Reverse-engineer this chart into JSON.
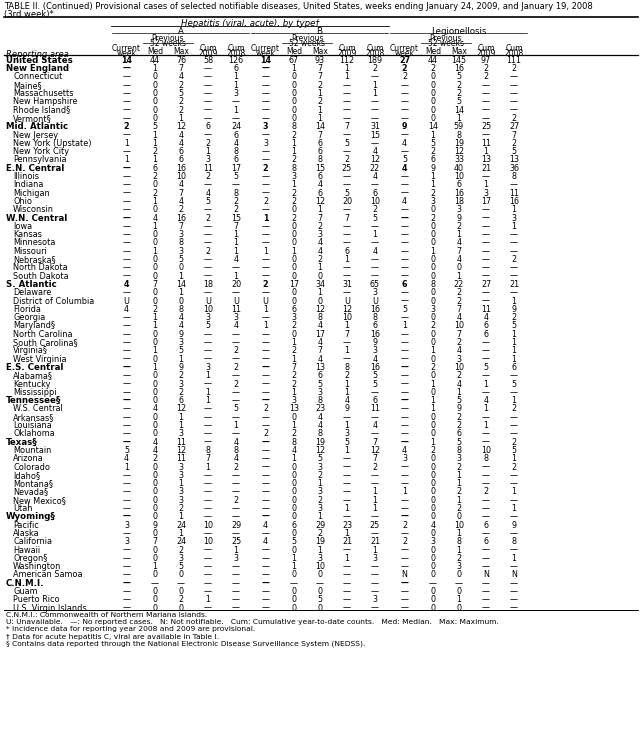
{
  "title_line1": "TABLE II. (Continued) Provisional cases of selected notifiable diseases, United States, weeks ending January 24, 2009, and January 19, 2008",
  "title_line2": "(3rd week)*",
  "col_group_label": "Hepatitis (viral, acute), by type†",
  "rows": [
    [
      "United States",
      "14",
      "44",
      "76",
      "58",
      "126",
      "14",
      "67",
      "93",
      "112",
      "189",
      "27",
      "44",
      "145",
      "97",
      "111"
    ],
    [
      "New England",
      "—",
      "1",
      "7",
      "—",
      "6",
      "—",
      "1",
      "7",
      "1",
      "2",
      "2",
      "2",
      "16",
      "2",
      "2"
    ],
    [
      "Connecticut",
      "—",
      "0",
      "4",
      "—",
      "1",
      "—",
      "0",
      "7",
      "1",
      "—",
      "2",
      "0",
      "5",
      "2",
      "—"
    ],
    [
      "Maine§",
      "—",
      "0",
      "2",
      "—",
      "1",
      "—",
      "0",
      "2",
      "—",
      "1",
      "—",
      "0",
      "2",
      "—",
      "—"
    ],
    [
      "Massachusetts",
      "—",
      "0",
      "5",
      "—",
      "3",
      "—",
      "0",
      "1",
      "—",
      "1",
      "—",
      "0",
      "2",
      "—",
      "—"
    ],
    [
      "New Hampshire",
      "—",
      "0",
      "2",
      "—",
      "—",
      "—",
      "0",
      "2",
      "—",
      "—",
      "—",
      "0",
      "5",
      "—",
      "—"
    ],
    [
      "Rhode Island§",
      "—",
      "0",
      "2",
      "—",
      "1",
      "—",
      "0",
      "1",
      "—",
      "—",
      "—",
      "0",
      "14",
      "—",
      "—"
    ],
    [
      "Vermont§",
      "—",
      "0",
      "1",
      "—",
      "—",
      "—",
      "0",
      "1",
      "—",
      "—",
      "—",
      "0",
      "1",
      "—",
      "2"
    ],
    [
      "Mid. Atlantic",
      "2",
      "5",
      "12",
      "6",
      "24",
      "3",
      "8",
      "14",
      "7",
      "31",
      "9",
      "14",
      "59",
      "25",
      "27"
    ],
    [
      "New Jersey",
      "—",
      "1",
      "4",
      "—",
      "6",
      "—",
      "2",
      "7",
      "—",
      "15",
      "—",
      "1",
      "8",
      "—",
      "7"
    ],
    [
      "New York (Upstate)",
      "1",
      "1",
      "4",
      "2",
      "4",
      "3",
      "1",
      "6",
      "5",
      "—",
      "4",
      "5",
      "19",
      "11",
      "2"
    ],
    [
      "New York City",
      "—",
      "2",
      "6",
      "1",
      "8",
      "—",
      "1",
      "6",
      "—",
      "4",
      "—",
      "2",
      "12",
      "1",
      "5"
    ],
    [
      "Pennsylvania",
      "1",
      "1",
      "6",
      "3",
      "6",
      "—",
      "2",
      "8",
      "2",
      "12",
      "5",
      "6",
      "33",
      "13",
      "13"
    ],
    [
      "E.N. Central",
      "—",
      "6",
      "16",
      "11",
      "17",
      "2",
      "8",
      "15",
      "25",
      "22",
      "4",
      "9",
      "40",
      "21",
      "36"
    ],
    [
      "Illinois",
      "—",
      "2",
      "10",
      "2",
      "5",
      "—",
      "3",
      "6",
      "—",
      "4",
      "—",
      "1",
      "10",
      "—",
      "8"
    ],
    [
      "Indiana",
      "—",
      "0",
      "4",
      "—",
      "—",
      "—",
      "1",
      "4",
      "—",
      "—",
      "—",
      "1",
      "6",
      "1",
      "—"
    ],
    [
      "Michigan",
      "—",
      "2",
      "7",
      "4",
      "8",
      "—",
      "2",
      "6",
      "5",
      "6",
      "—",
      "2",
      "16",
      "3",
      "11"
    ],
    [
      "Ohio",
      "—",
      "1",
      "4",
      "5",
      "2",
      "2",
      "2",
      "12",
      "20",
      "10",
      "4",
      "3",
      "18",
      "17",
      "16"
    ],
    [
      "Wisconsin",
      "—",
      "0",
      "2",
      "—",
      "2",
      "—",
      "0",
      "1",
      "—",
      "2",
      "—",
      "0",
      "3",
      "—",
      "1"
    ],
    [
      "W.N. Central",
      "—",
      "4",
      "16",
      "2",
      "15",
      "1",
      "2",
      "7",
      "7",
      "5",
      "—",
      "2",
      "9",
      "—",
      "3"
    ],
    [
      "Iowa",
      "—",
      "1",
      "7",
      "—",
      "7",
      "—",
      "0",
      "2",
      "—",
      "—",
      "—",
      "0",
      "2",
      "—",
      "1"
    ],
    [
      "Kansas",
      "—",
      "0",
      "3",
      "—",
      "1",
      "—",
      "0",
      "3",
      "—",
      "1",
      "—",
      "0",
      "1",
      "—",
      "—"
    ],
    [
      "Minnesota",
      "—",
      "0",
      "8",
      "—",
      "1",
      "—",
      "0",
      "4",
      "—",
      "—",
      "—",
      "0",
      "4",
      "—",
      "—"
    ],
    [
      "Missouri",
      "—",
      "1",
      "3",
      "2",
      "1",
      "1",
      "1",
      "4",
      "6",
      "4",
      "—",
      "1",
      "7",
      "—",
      "—"
    ],
    [
      "Nebraska§",
      "—",
      "0",
      "5",
      "—",
      "4",
      "—",
      "0",
      "2",
      "1",
      "—",
      "—",
      "0",
      "4",
      "—",
      "2"
    ],
    [
      "North Dakota",
      "—",
      "0",
      "0",
      "—",
      "—",
      "—",
      "0",
      "1",
      "—",
      "—",
      "—",
      "0",
      "0",
      "—",
      "—"
    ],
    [
      "South Dakota",
      "—",
      "0",
      "1",
      "—",
      "1",
      "—",
      "0",
      "0",
      "—",
      "—",
      "—",
      "0",
      "1",
      "—",
      "—"
    ],
    [
      "S. Atlantic",
      "4",
      "7",
      "14",
      "18",
      "20",
      "2",
      "17",
      "34",
      "31",
      "65",
      "6",
      "8",
      "22",
      "27",
      "21"
    ],
    [
      "Delaware",
      "—",
      "0",
      "1",
      "—",
      "—",
      "—",
      "0",
      "1",
      "—",
      "3",
      "—",
      "0",
      "2",
      "—",
      "—"
    ],
    [
      "District of Columbia",
      "U",
      "0",
      "0",
      "U",
      "U",
      "U",
      "0",
      "0",
      "U",
      "U",
      "—",
      "0",
      "2",
      "—",
      "1"
    ],
    [
      "Florida",
      "4",
      "2",
      "8",
      "10",
      "11",
      "1",
      "6",
      "12",
      "12",
      "16",
      "5",
      "3",
      "7",
      "11",
      "9"
    ],
    [
      "Georgia",
      "—",
      "1",
      "4",
      "3",
      "3",
      "—",
      "3",
      "8",
      "10",
      "8",
      "—",
      "0",
      "4",
      "4",
      "2"
    ],
    [
      "Maryland§",
      "—",
      "1",
      "4",
      "5",
      "4",
      "1",
      "2",
      "4",
      "1",
      "6",
      "1",
      "2",
      "10",
      "6",
      "5"
    ],
    [
      "North Carolina",
      "—",
      "0",
      "9",
      "—",
      "—",
      "—",
      "0",
      "17",
      "7",
      "16",
      "—",
      "0",
      "7",
      "6",
      "1"
    ],
    [
      "South Carolina§",
      "—",
      "0",
      "3",
      "—",
      "—",
      "—",
      "1",
      "4",
      "—",
      "9",
      "—",
      "0",
      "2",
      "—",
      "1"
    ],
    [
      "Virginia§",
      "—",
      "1",
      "5",
      "—",
      "2",
      "—",
      "2",
      "7",
      "1",
      "3",
      "—",
      "1",
      "4",
      "—",
      "1"
    ],
    [
      "West Virginia",
      "—",
      "0",
      "1",
      "—",
      "—",
      "—",
      "1",
      "4",
      "—",
      "4",
      "—",
      "0",
      "3",
      "—",
      "1"
    ],
    [
      "E.S. Central",
      "—",
      "1",
      "9",
      "3",
      "2",
      "—",
      "7",
      "13",
      "8",
      "16",
      "—",
      "2",
      "10",
      "5",
      "6"
    ],
    [
      "Alabama§",
      "—",
      "0",
      "2",
      "1",
      "—",
      "—",
      "2",
      "6",
      "2",
      "5",
      "—",
      "0",
      "2",
      "—",
      "—"
    ],
    [
      "Kentucky",
      "—",
      "0",
      "3",
      "—",
      "2",
      "—",
      "2",
      "5",
      "1",
      "5",
      "—",
      "1",
      "4",
      "1",
      "5"
    ],
    [
      "Mississippi",
      "—",
      "0",
      "2",
      "1",
      "—",
      "—",
      "1",
      "3",
      "1",
      "—",
      "—",
      "0",
      "1",
      "—",
      "—"
    ],
    [
      "Tennessee§",
      "—",
      "0",
      "6",
      "1",
      "—",
      "—",
      "3",
      "8",
      "4",
      "6",
      "—",
      "1",
      "5",
      "4",
      "1"
    ],
    [
      "W.S. Central",
      "—",
      "4",
      "12",
      "—",
      "5",
      "2",
      "13",
      "23",
      "9",
      "11",
      "—",
      "1",
      "9",
      "1",
      "2"
    ],
    [
      "Arkansas§",
      "—",
      "0",
      "1",
      "—",
      "—",
      "—",
      "0",
      "4",
      "—",
      "—",
      "—",
      "0",
      "2",
      "—",
      "—"
    ],
    [
      "Louisiana",
      "—",
      "0",
      "1",
      "—",
      "1",
      "—",
      "1",
      "4",
      "1",
      "4",
      "—",
      "0",
      "2",
      "1",
      "—"
    ],
    [
      "Oklahoma",
      "—",
      "0",
      "3",
      "—",
      "—",
      "2",
      "2",
      "8",
      "3",
      "—",
      "—",
      "0",
      "6",
      "—",
      "—"
    ],
    [
      "Texas§",
      "—",
      "4",
      "11",
      "—",
      "4",
      "—",
      "8",
      "19",
      "5",
      "7",
      "—",
      "1",
      "5",
      "—",
      "2"
    ],
    [
      "Mountain",
      "5",
      "4",
      "12",
      "8",
      "8",
      "—",
      "4",
      "12",
      "1",
      "12",
      "4",
      "2",
      "8",
      "10",
      "5"
    ],
    [
      "Arizona",
      "4",
      "2",
      "11",
      "7",
      "4",
      "—",
      "1",
      "5",
      "—",
      "7",
      "3",
      "0",
      "3",
      "8",
      "1"
    ],
    [
      "Colorado",
      "1",
      "0",
      "3",
      "1",
      "2",
      "—",
      "0",
      "3",
      "—",
      "2",
      "—",
      "0",
      "2",
      "—",
      "2"
    ],
    [
      "Idaho§",
      "—",
      "0",
      "3",
      "—",
      "—",
      "—",
      "0",
      "2",
      "—",
      "—",
      "—",
      "0",
      "1",
      "—",
      "—"
    ],
    [
      "Montana§",
      "—",
      "0",
      "1",
      "—",
      "—",
      "—",
      "0",
      "1",
      "—",
      "—",
      "—",
      "0",
      "1",
      "—",
      "—"
    ],
    [
      "Nevada§",
      "—",
      "0",
      "3",
      "—",
      "—",
      "—",
      "0",
      "3",
      "—",
      "1",
      "1",
      "0",
      "2",
      "2",
      "1"
    ],
    [
      "New Mexico§",
      "—",
      "0",
      "3",
      "—",
      "2",
      "—",
      "0",
      "2",
      "—",
      "1",
      "—",
      "0",
      "1",
      "—",
      "—"
    ],
    [
      "Utah",
      "—",
      "0",
      "2",
      "—",
      "—",
      "—",
      "0",
      "3",
      "1",
      "1",
      "—",
      "0",
      "2",
      "—",
      "1"
    ],
    [
      "Wyoming§",
      "—",
      "0",
      "1",
      "—",
      "—",
      "—",
      "0",
      "1",
      "—",
      "—",
      "—",
      "0",
      "0",
      "—",
      "—"
    ],
    [
      "Pacific",
      "3",
      "9",
      "24",
      "10",
      "29",
      "4",
      "6",
      "29",
      "23",
      "25",
      "2",
      "4",
      "10",
      "6",
      "9"
    ],
    [
      "Alaska",
      "—",
      "0",
      "1",
      "—",
      "—",
      "—",
      "0",
      "2",
      "1",
      "—",
      "—",
      "0",
      "1",
      "—",
      "—"
    ],
    [
      "California",
      "3",
      "7",
      "24",
      "10",
      "25",
      "4",
      "5",
      "19",
      "21",
      "21",
      "2",
      "3",
      "8",
      "6",
      "8"
    ],
    [
      "Hawaii",
      "—",
      "0",
      "2",
      "—",
      "1",
      "—",
      "0",
      "1",
      "—",
      "1",
      "—",
      "0",
      "1",
      "—",
      "—"
    ],
    [
      "Oregon§",
      "—",
      "0",
      "3",
      "—",
      "3",
      "—",
      "1",
      "3",
      "1",
      "3",
      "—",
      "0",
      "2",
      "—",
      "1"
    ],
    [
      "Washington",
      "—",
      "1",
      "5",
      "—",
      "—",
      "—",
      "1",
      "10",
      "—",
      "—",
      "—",
      "0",
      "3",
      "—",
      "—"
    ],
    [
      "American Samoa",
      "—",
      "0",
      "0",
      "—",
      "—",
      "—",
      "0",
      "0",
      "—",
      "—",
      "N",
      "0",
      "0",
      "N",
      "N"
    ],
    [
      "C.N.M.I.",
      "—",
      "—",
      "—",
      "—",
      "—",
      "—",
      "—",
      "—",
      "—",
      "—",
      "—",
      "—",
      "—",
      "—",
      "—"
    ],
    [
      "Guam",
      "—",
      "0",
      "0",
      "—",
      "—",
      "—",
      "0",
      "0",
      "—",
      "—",
      "—",
      "0",
      "0",
      "—",
      "—"
    ],
    [
      "Puerto Rico",
      "—",
      "0",
      "2",
      "1",
      "—",
      "—",
      "0",
      "5",
      "—",
      "3",
      "—",
      "0",
      "1",
      "—",
      "—"
    ],
    [
      "U.S. Virgin Islands",
      "—",
      "0",
      "0",
      "—",
      "—",
      "—",
      "0",
      "0",
      "—",
      "—",
      "—",
      "0",
      "0",
      "—",
      "—"
    ]
  ],
  "bold_rows": [
    0,
    1,
    8,
    13,
    19,
    27,
    37,
    41,
    46,
    55,
    63
  ],
  "footnotes": [
    "C.N.M.I.: Commonwealth of Northern Mariana Islands.",
    "U: Unavailable.   —: No reported cases.   N: Not notifiable.   Cum: Cumulative year-to-date counts.   Med: Median.   Max: Maximum.",
    "* Incidence data for reporting year 2008 and 2009 are provisional.",
    "† Data for acute hepatitis C, viral are available in Table I.",
    "§ Contains data reported through the National Electronic Disease Surveillance System (NEDSS)."
  ]
}
